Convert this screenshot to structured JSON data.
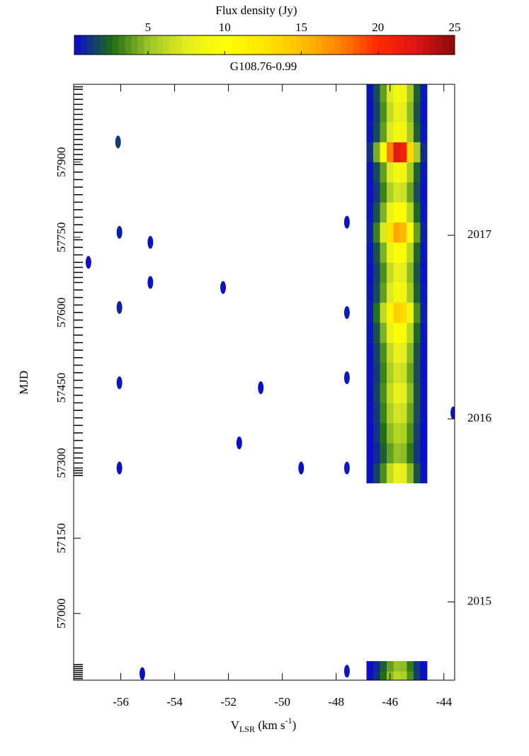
{
  "chart_data": {
    "type": "heatmap",
    "colorbar_title": "Flux density (Jy)",
    "clim": [
      0.2,
      25
    ],
    "cticks": [
      5,
      10,
      15,
      20,
      25
    ],
    "colormap": [
      "#0a0ad2",
      "#1e6e14",
      "#a0c828",
      "#e6f01e",
      "#ffff00",
      "#ffe600",
      "#ffbe00",
      "#ff8200",
      "#ff2800",
      "#dc1414",
      "#8c0a0a"
    ],
    "title": "G108.76-0.99",
    "x_label": {
      "text": "V",
      "sub": "LSR",
      "units": " (km s",
      "sup": "-1",
      "end": ")"
    },
    "y_label": "MJD",
    "xlim": [
      -57.75,
      -43.6
    ],
    "xticks": [
      -56,
      -54,
      -52,
      -50,
      -48,
      -46,
      -44
    ],
    "ylim": [
      56867,
      58055
    ],
    "yticks": [
      57000,
      57150,
      57300,
      57450,
      57600,
      57750,
      57900
    ],
    "y2ticks": [
      {
        "value": 57023,
        "label": "2015"
      },
      {
        "value": 57388,
        "label": "2016"
      },
      {
        "value": 57754,
        "label": "2017"
      }
    ],
    "x": [
      -46.75,
      -46.5,
      -46.25,
      -46,
      -45.75,
      -45.5,
      -45.25,
      -45,
      -44.75
    ],
    "y": [
      56875,
      56895,
      57280,
      57320,
      57360,
      57400,
      57440,
      57480,
      57520,
      57560,
      57600,
      57640,
      57680,
      57720,
      57760,
      57800,
      57840,
      57880,
      57920,
      57960,
      58000,
      58040
    ],
    "z": [
      [
        0.3,
        1.2,
        2.7,
        4.8,
        6,
        5.7,
        3.6,
        1.5,
        0.3
      ],
      [
        0.3,
        1,
        2.3,
        4,
        5,
        4.8,
        3,
        1.3,
        0.3
      ],
      [
        0.4,
        1.6,
        3.6,
        6.4,
        8,
        7.6,
        4.8,
        2,
        0.4
      ],
      [
        0.3,
        1,
        2.3,
        4,
        5,
        4.8,
        3,
        1.3,
        0.3
      ],
      [
        0.3,
        1.2,
        2.7,
        4.8,
        6,
        5.7,
        3.6,
        1.5,
        0.3
      ],
      [
        0.4,
        1.4,
        3.2,
        5.6,
        7,
        6.7,
        4.2,
        1.8,
        0.4
      ],
      [
        0.4,
        1.6,
        3.6,
        6.4,
        8,
        7.6,
        4.8,
        2,
        0.4
      ],
      [
        0.4,
        1.4,
        3.2,
        5.6,
        7,
        6.7,
        4.2,
        1.8,
        0.4
      ],
      [
        0.4,
        1.6,
        3.6,
        6.4,
        8,
        7.6,
        4.8,
        2,
        0.4
      ],
      [
        0.5,
        2,
        4.5,
        8,
        10,
        9.5,
        6,
        2.5,
        0.5
      ],
      [
        0.7,
        2.8,
        6.3,
        11.2,
        14,
        13.3,
        8.4,
        3.5,
        0.7
      ],
      [
        0.5,
        1.8,
        4,
        7.2,
        9,
        8.6,
        5.4,
        2.3,
        0.5
      ],
      [
        0.4,
        1.6,
        3.6,
        6.4,
        8,
        7.6,
        4.8,
        2,
        0.4
      ],
      [
        0.5,
        2,
        4.5,
        8,
        10,
        9.5,
        6,
        2.5,
        0.5
      ],
      [
        0.8,
        3.2,
        7.2,
        12.8,
        16,
        15.2,
        9.6,
        4,
        0.8
      ],
      [
        0.5,
        2,
        4.5,
        8,
        10,
        9.5,
        6,
        2.5,
        0.5
      ],
      [
        0.4,
        1.4,
        3.2,
        5.6,
        7,
        6.7,
        4.2,
        1.8,
        0.4
      ],
      [
        0.5,
        1.8,
        4,
        7.2,
        9,
        8.6,
        5.4,
        2.3,
        0.5
      ],
      [
        1.1,
        4.4,
        9.9,
        17.6,
        22,
        20.9,
        13.2,
        5.5,
        1.1
      ],
      [
        0.5,
        1.8,
        4,
        7.2,
        9,
        8.6,
        5.4,
        2.3,
        0.5
      ],
      [
        0.4,
        1.6,
        3.6,
        6.4,
        8,
        7.6,
        4.8,
        2,
        0.4
      ],
      [
        0.5,
        1.8,
        4,
        7.2,
        9,
        8.6,
        5.4,
        2.3,
        0.5
      ]
    ],
    "spots": {
      "v": [
        -56.1,
        -56.05,
        -56.05,
        -56.05,
        -56.05,
        -54.9,
        -54.9,
        -47.6,
        -47.6,
        -47.6,
        -47.6,
        -47.6,
        -52.2,
        -57.2,
        -43.65,
        -49.3,
        -55.2,
        -50.8,
        -51.6
      ],
      "mjd": [
        57940,
        57760,
        57610,
        57460,
        57290,
        57740,
        57660,
        57600,
        57470,
        57290,
        57780,
        56885,
        57650,
        57700,
        57400,
        57290,
        56880,
        57450,
        57340
      ],
      "flux": [
        1.5,
        0.6,
        0.8,
        0.5,
        0.4,
        0.4,
        0.3,
        0.6,
        0.6,
        0.6,
        0.4,
        0.5,
        0.4,
        0.4,
        0.4,
        0.4,
        0.4,
        0.3,
        0.3
      ]
    },
    "epochs": [
      56870,
      56874,
      56878,
      56882,
      56886,
      56890,
      56894,
      56898,
      57275,
      57280,
      57285,
      57290,
      57300,
      57310,
      57320,
      57330,
      57345,
      57360,
      57375,
      57390,
      57405,
      57420,
      57435,
      57450,
      57465,
      57480,
      57495,
      57510,
      57525,
      57540,
      57555,
      57570,
      57585,
      57600,
      57615,
      57630,
      57645,
      57660,
      57670,
      57680,
      57690,
      57700,
      57715,
      57730,
      57745,
      57760,
      57775,
      57790,
      57805,
      57820,
      57835,
      57850,
      57865,
      57880,
      57895,
      57905,
      57915,
      57925,
      57935,
      57945,
      57955,
      57965,
      57975,
      57985,
      57995,
      58005,
      58015,
      58025,
      58035,
      58045,
      58050
    ]
  }
}
